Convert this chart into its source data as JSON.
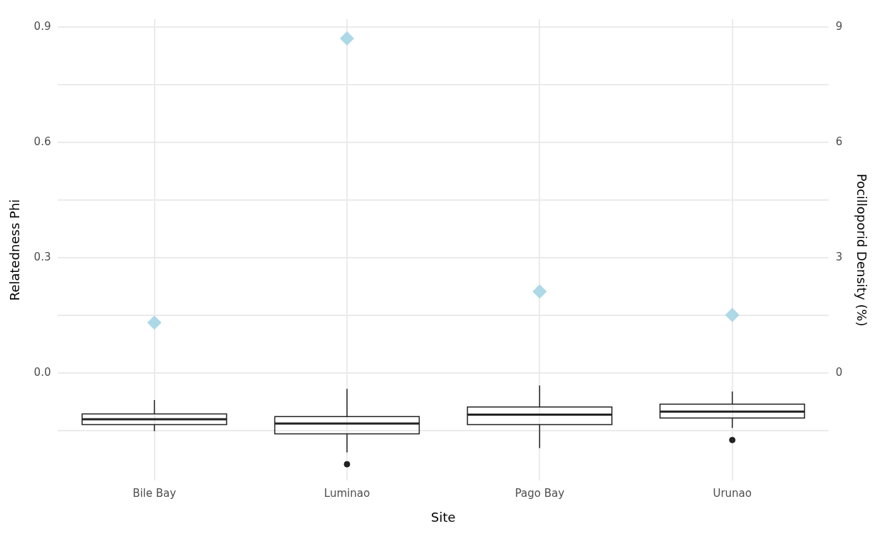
{
  "chart_data": {
    "type": "box",
    "xlabel": "Site",
    "ylabel": "Relatedness Phi",
    "y2label": "Pocilloporid Density (%)",
    "categories": [
      "Bile Bay",
      "Luminao",
      "Pago Bay",
      "Urunao"
    ],
    "series": [
      {
        "color": "#222222",
        "boxes": [
          {
            "low": -0.151,
            "q1": -0.134,
            "median": -0.12,
            "q3": -0.106,
            "high": -0.07
          },
          {
            "low": -0.206,
            "q1": -0.158,
            "median": -0.131,
            "q3": -0.113,
            "high": -0.041,
            "outliers": [
              -0.237
            ]
          },
          {
            "low": -0.195,
            "q1": -0.134,
            "median": -0.108,
            "q3": -0.088,
            "high": -0.032
          },
          {
            "low": -0.143,
            "q1": -0.117,
            "median": -0.1,
            "q3": -0.081,
            "high": -0.048,
            "outliers": [
              -0.174
            ]
          }
        ]
      },
      {
        "type": "scatter",
        "axis": "y2",
        "color": "#add8e6",
        "marker": "diamond",
        "x": [
          "Bile Bay",
          "Luminao",
          "Pago Bay",
          "Urunao"
        ],
        "values": [
          1.31,
          8.7,
          2.12,
          1.51
        ]
      }
    ],
    "ylim": [
      -0.28,
      0.92
    ],
    "yticks": [
      {
        "value": -0.15,
        "label": null
      },
      {
        "value": 0,
        "label": "0.0"
      },
      {
        "value": 0.15,
        "label": null
      },
      0.3,
      {
        "value": 0.45,
        "label": null
      },
      0.6,
      {
        "value": 0.75,
        "label": null
      },
      0.9
    ],
    "y2lim": [
      -2.8,
      9.2
    ],
    "y2ticks": [
      0,
      3,
      6,
      9
    ],
    "grid": true
  }
}
